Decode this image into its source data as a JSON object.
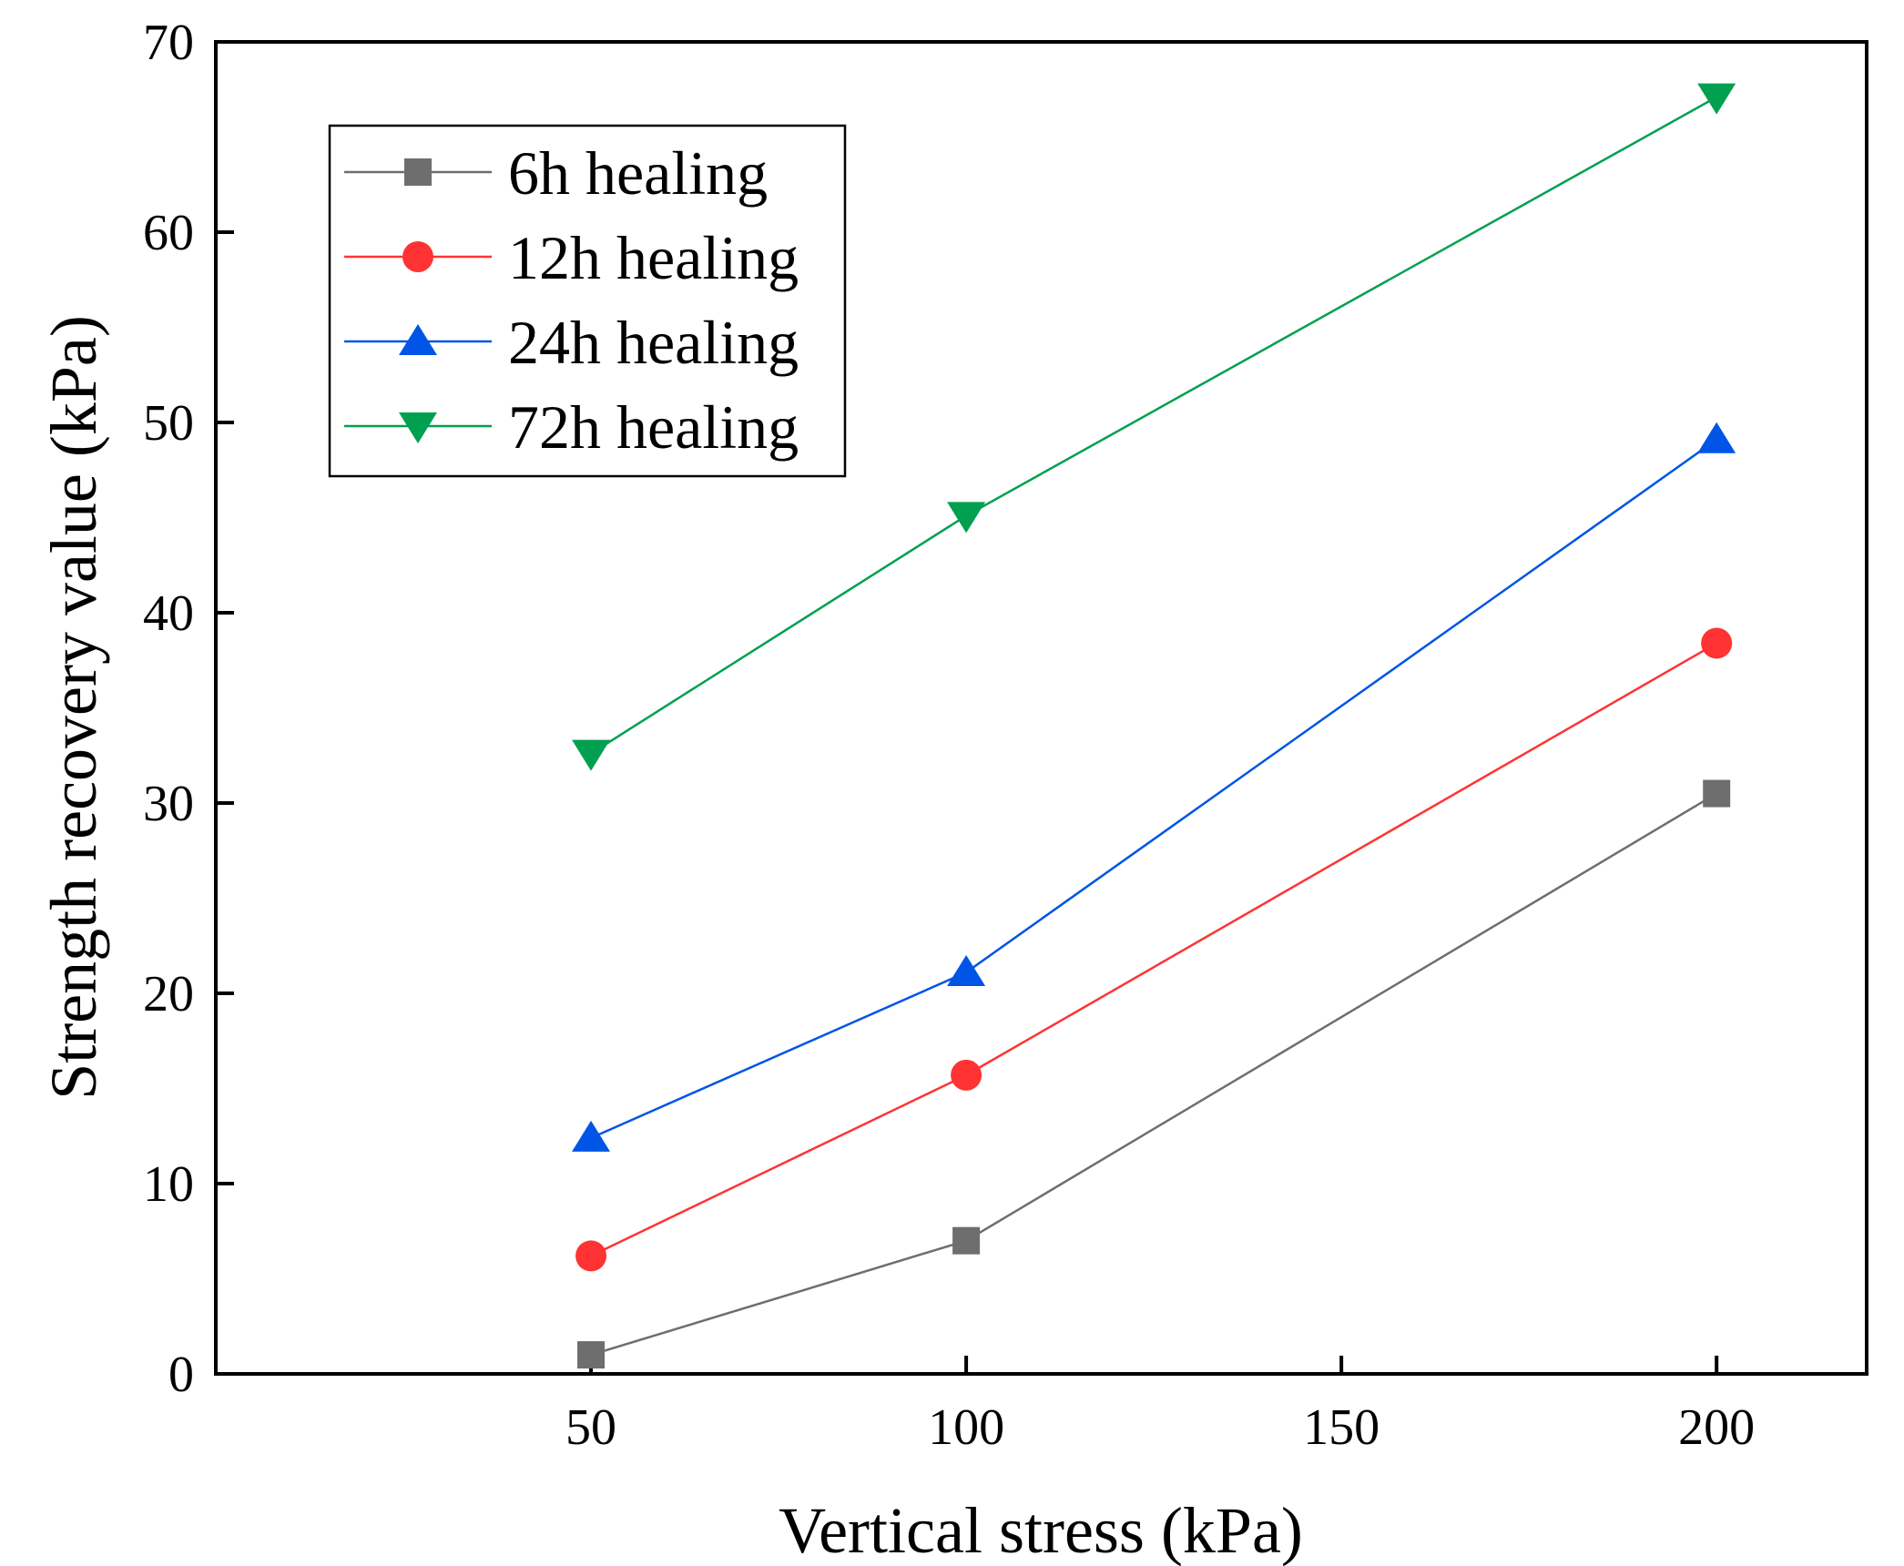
{
  "chart_data": {
    "type": "line",
    "title": "",
    "xlabel": "Vertical stress (kPa)",
    "ylabel": "Strength recovery value (kPa)",
    "xlim": [
      0,
      220
    ],
    "ylim": [
      0,
      70
    ],
    "xticks": [
      50,
      100,
      150,
      200
    ],
    "yticks": [
      0,
      10,
      20,
      30,
      40,
      50,
      60,
      70
    ],
    "x": [
      50,
      100,
      200
    ],
    "legend_position": "top-left",
    "grid": false,
    "series": [
      {
        "name": "6h healing",
        "values": [
          1.0,
          7.0,
          30.5
        ],
        "color": "#6e6e6e",
        "marker": "square"
      },
      {
        "name": "12h healing",
        "values": [
          6.2,
          15.7,
          38.4
        ],
        "color": "#ff3333",
        "marker": "circle"
      },
      {
        "name": "24h healing",
        "values": [
          12.4,
          21.1,
          49.1
        ],
        "color": "#0055e6",
        "marker": "triangle-up"
      },
      {
        "name": "72h healing",
        "values": [
          32.6,
          45.1,
          67.1
        ],
        "color": "#00a050",
        "marker": "triangle-down"
      }
    ]
  }
}
